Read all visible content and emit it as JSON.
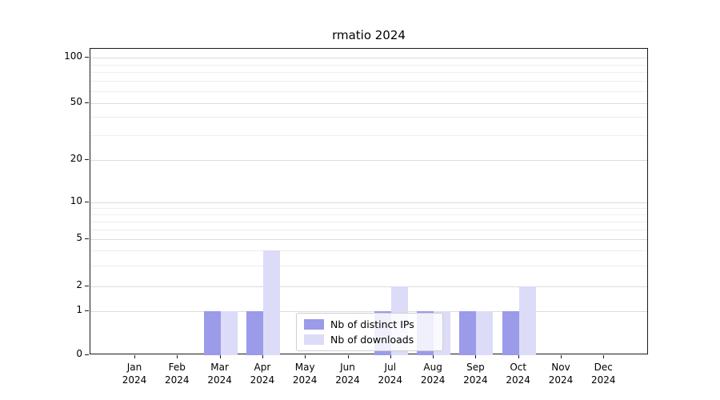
{
  "chart_data": {
    "type": "bar",
    "title": "rmatio 2024",
    "categories": [
      "Jan 2024",
      "Feb 2024",
      "Mar 2024",
      "Apr 2024",
      "May 2024",
      "Jun 2024",
      "Jul 2024",
      "Aug 2024",
      "Sep 2024",
      "Oct 2024",
      "Nov 2024",
      "Dec 2024"
    ],
    "series": [
      {
        "name": "Nb of distinct IPs",
        "color": "#9b9bea",
        "values": [
          0,
          0,
          1,
          1,
          0,
          0,
          1,
          1,
          1,
          1,
          0,
          0
        ]
      },
      {
        "name": "Nb of downloads",
        "color": "#dcdcf8",
        "values": [
          0,
          0,
          1,
          4,
          0,
          0,
          2,
          1,
          1,
          2,
          0,
          0
        ]
      }
    ],
    "xlabel": "",
    "ylabel": "",
    "yscale": "symlog",
    "yticks": [
      0,
      1,
      2,
      5,
      10,
      20,
      50,
      100
    ],
    "minor_yticks": [
      3,
      4,
      6,
      7,
      8,
      9,
      30,
      40,
      60,
      70,
      80,
      90
    ],
    "ylim": [
      0,
      120
    ],
    "grid": true,
    "legend_position": "lower center",
    "background": "#ffffff"
  }
}
